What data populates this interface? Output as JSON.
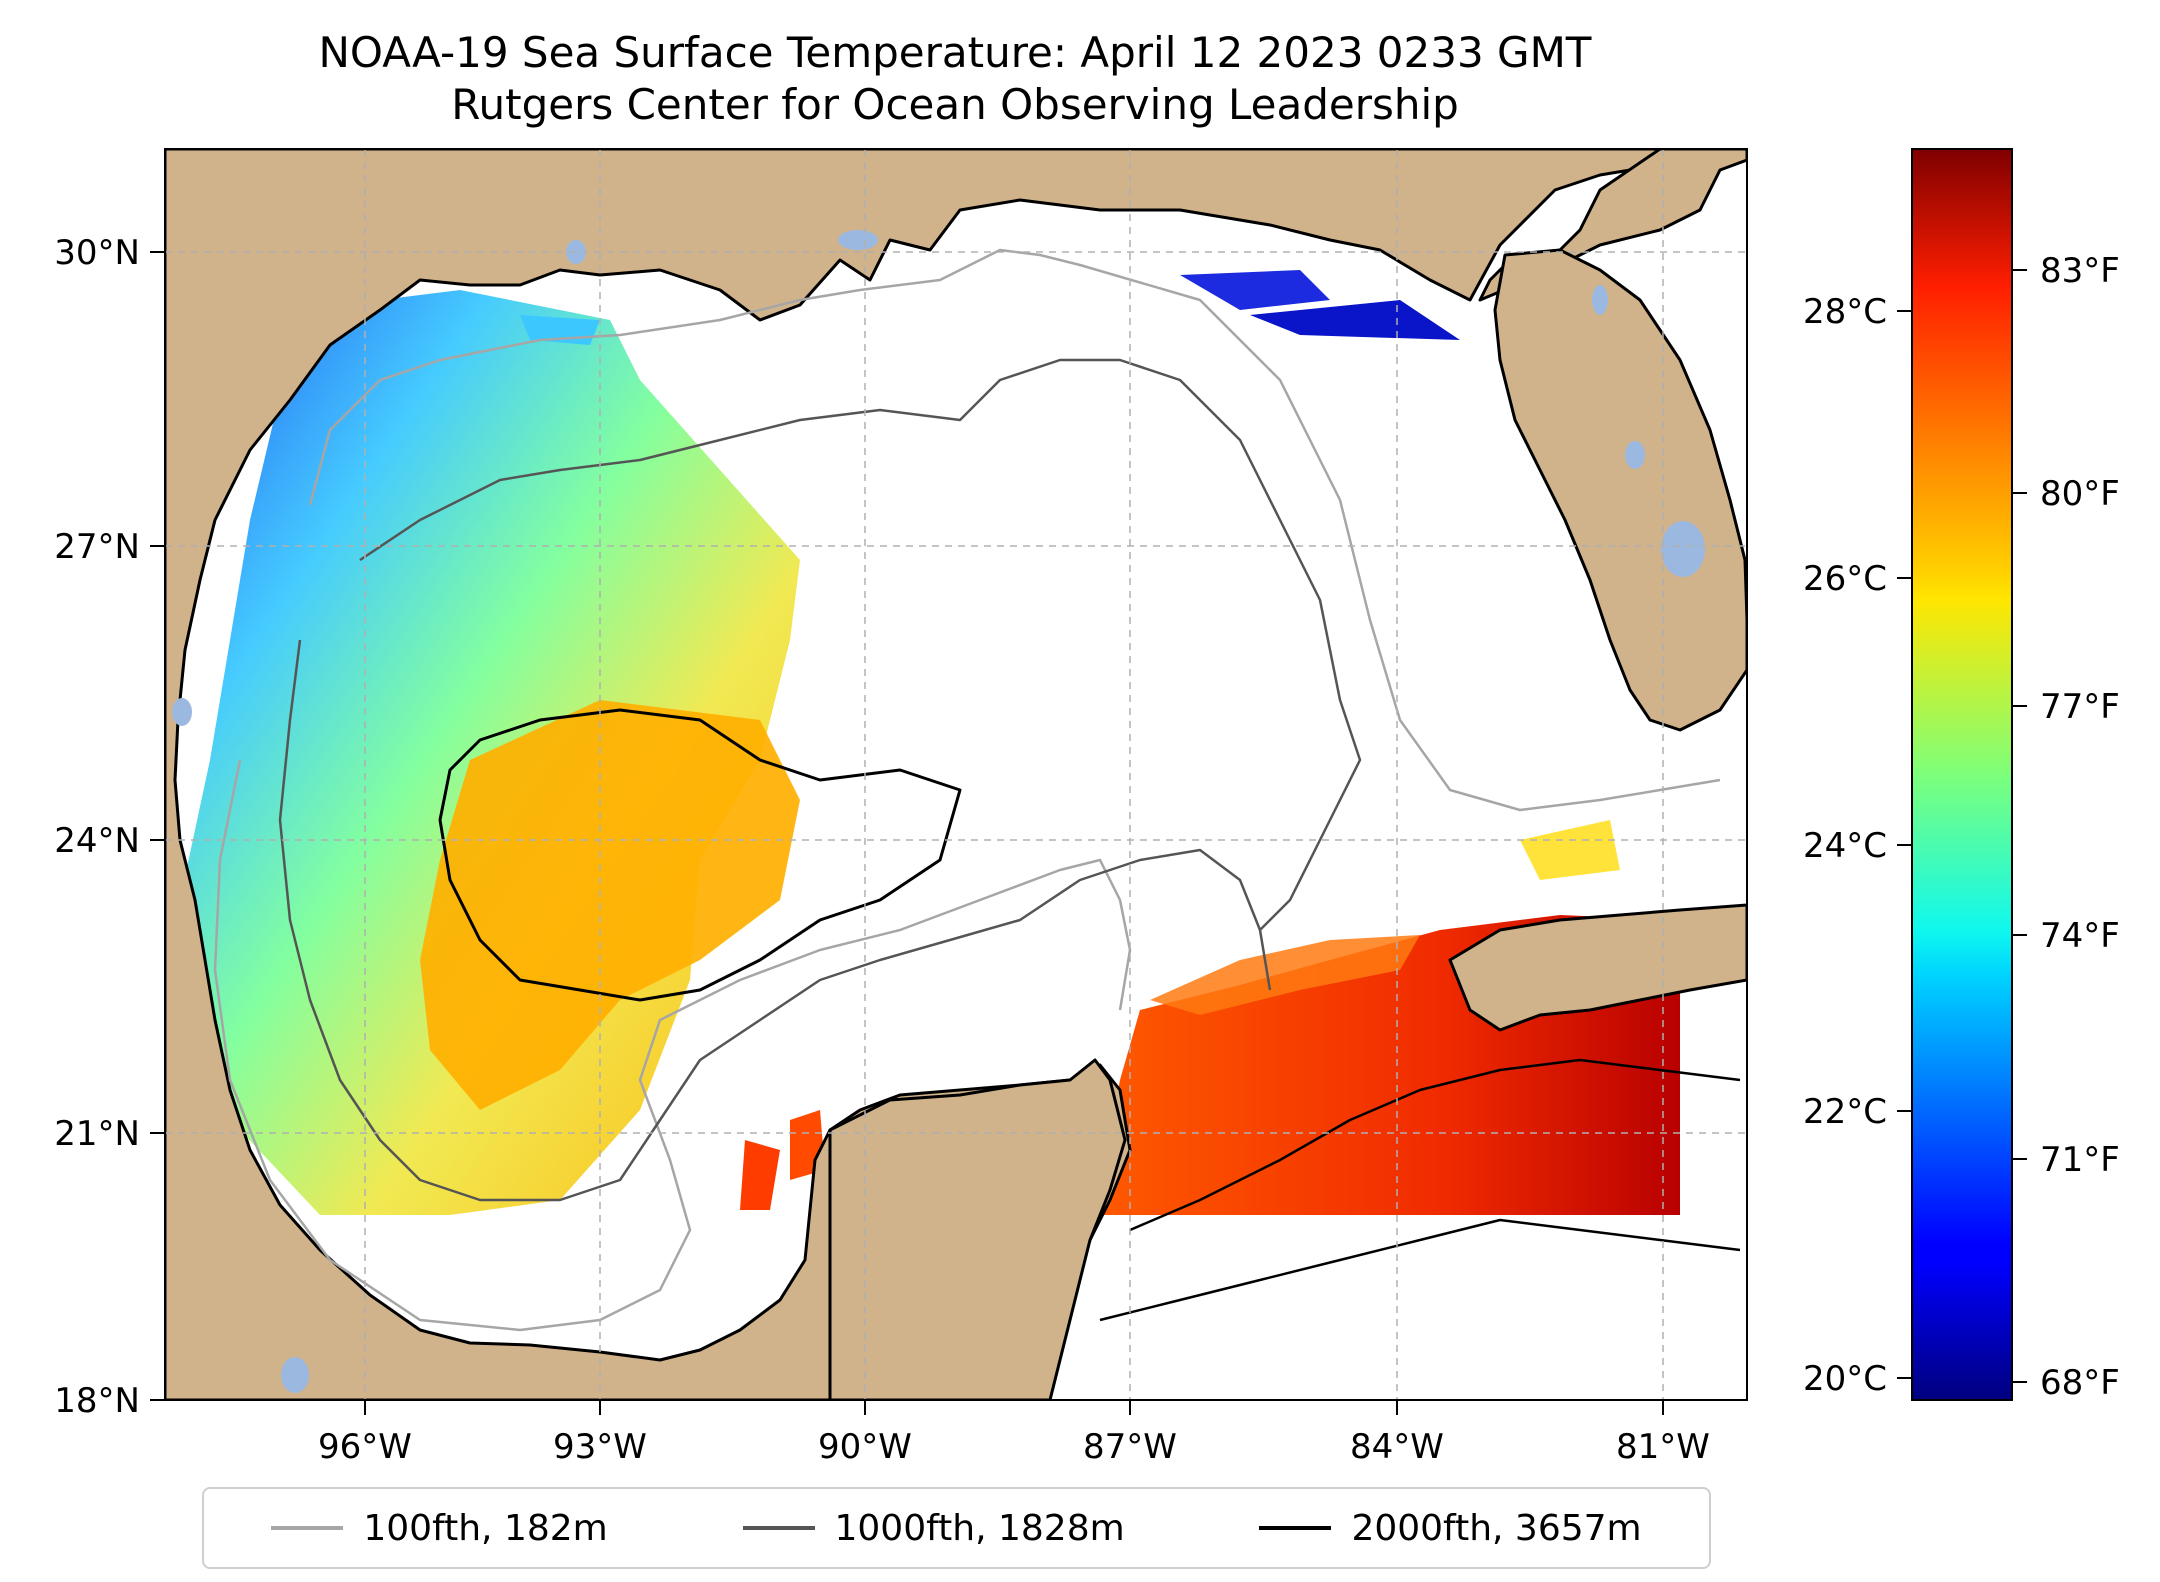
{
  "title": "NOAA-19 Sea Surface Temperature: April 12 2023 0233 GMT",
  "subtitle": "Rutgers Center for Ocean Observing Leadership",
  "map": {
    "lat_range": [
      18,
      31
    ],
    "lon_range": [
      -98.3,
      -80.6
    ],
    "lat_ticks": [
      "30°N",
      "27°N",
      "24°N",
      "21°N",
      "18°N"
    ],
    "lon_ticks": [
      "96°W",
      "93°W",
      "90°W",
      "87°W",
      "84°W",
      "81°W"
    ],
    "grid": true,
    "colors": {
      "land": "#d1b38b",
      "ocean_no_data": "#ffffff",
      "inland_water": "#9bb8e1",
      "grid": "#b0b0b0"
    }
  },
  "colorbar": {
    "colormap": "jet",
    "celsius_ticks": [
      "28°C",
      "26°C",
      "24°C",
      "22°C",
      "20°C"
    ],
    "fahrenheit_ticks": [
      "83°F",
      "80°F",
      "77°F",
      "74°F",
      "71°F",
      "68°F"
    ]
  },
  "legend": {
    "items": [
      {
        "label": "100fth, 182m",
        "color": "#a6a6a6"
      },
      {
        "label": "1000fth, 1828m",
        "color": "#555555"
      },
      {
        "label": "2000fth, 3657m",
        "color": "#000000"
      }
    ]
  }
}
